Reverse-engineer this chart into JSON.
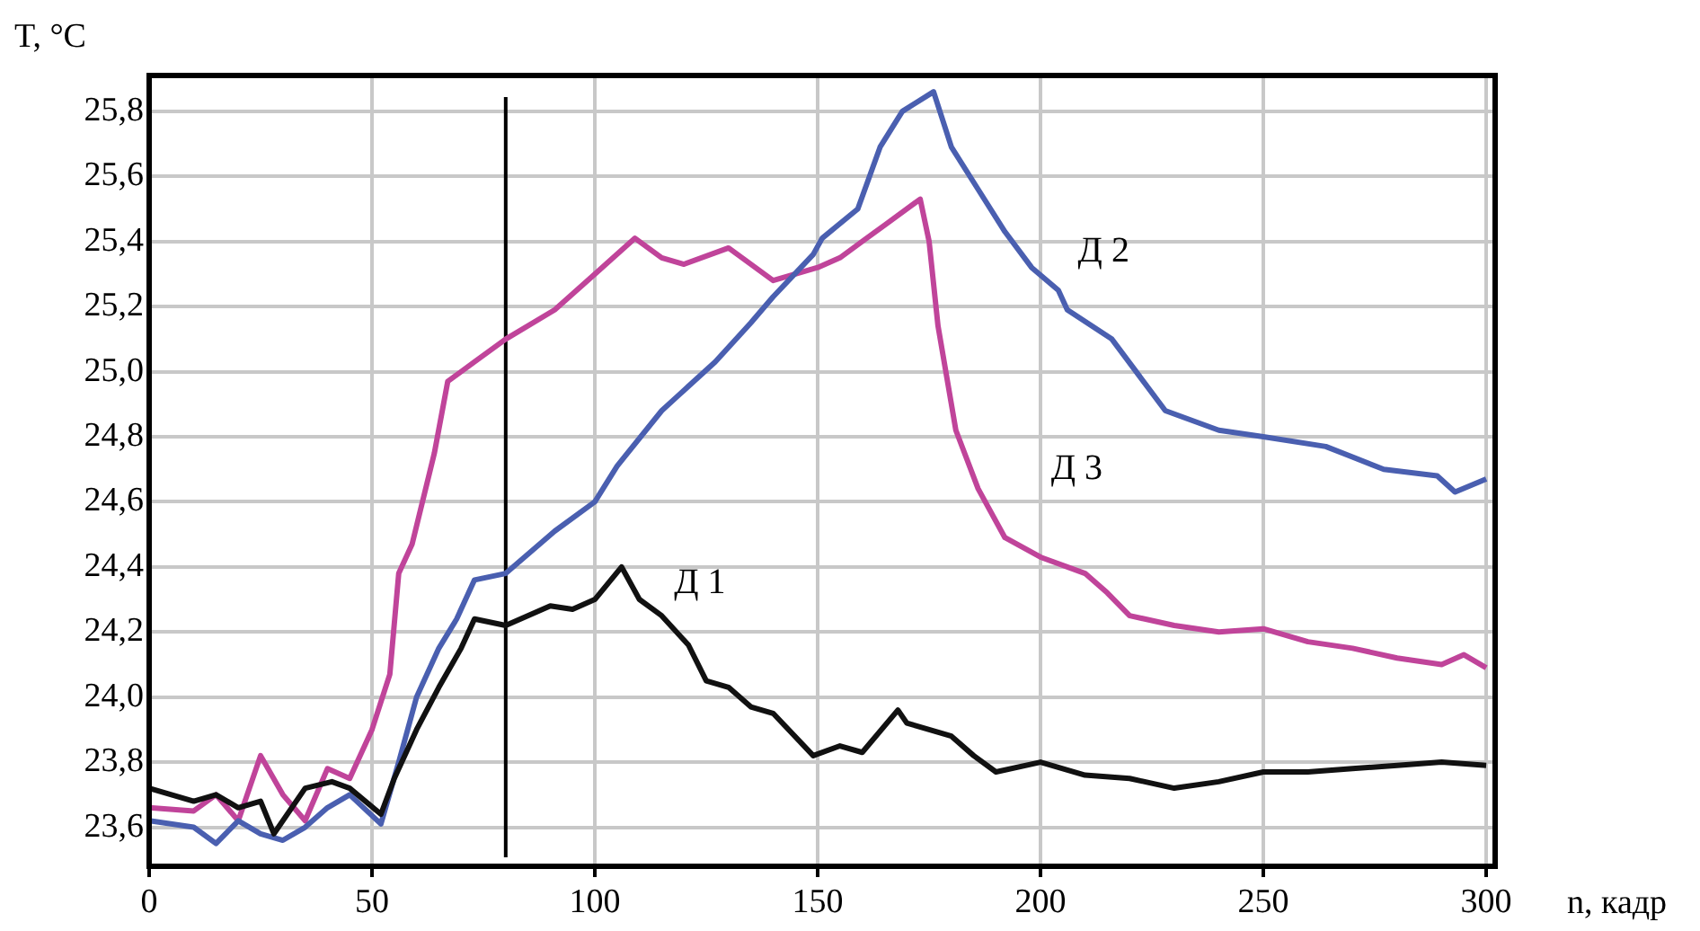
{
  "chart_data": {
    "type": "line",
    "xlabel": "n, кадр",
    "ylabel": "T, °C",
    "xlim": [
      0,
      302
    ],
    "ylim": [
      23.48,
      25.91
    ],
    "xticks": [
      0,
      50,
      100,
      150,
      200,
      250,
      300
    ],
    "yticks": [
      {
        "value": 23.6,
        "label": "23,6"
      },
      {
        "value": 23.8,
        "label": "23,8"
      },
      {
        "value": 24.0,
        "label": "24,0"
      },
      {
        "value": 24.2,
        "label": "24,2"
      },
      {
        "value": 24.4,
        "label": "24,4"
      },
      {
        "value": 24.6,
        "label": "24,6"
      },
      {
        "value": 24.8,
        "label": "24,8"
      },
      {
        "value": 25.0,
        "label": "25,0"
      },
      {
        "value": 25.2,
        "label": "25,2"
      },
      {
        "value": 25.4,
        "label": "25,4"
      },
      {
        "value": 25.6,
        "label": "25,6"
      },
      {
        "value": 25.8,
        "label": "25,8"
      }
    ],
    "grid": true,
    "legend": false,
    "marker": "none",
    "line_style": "solid",
    "ref_lines": [
      {
        "axis": "x",
        "value": 80,
        "color": "#000000"
      }
    ],
    "series": [
      {
        "name": "Д 1",
        "color": "#111111",
        "x": [
          0,
          5,
          10,
          15,
          20,
          25,
          28,
          35,
          41,
          45,
          52,
          55,
          60,
          65,
          70,
          73,
          80,
          90,
          95,
          100,
          106,
          110,
          115,
          121,
          125,
          130,
          135,
          140,
          149,
          155,
          160,
          168,
          170,
          175,
          180,
          185,
          190,
          200,
          210,
          220,
          230,
          240,
          250,
          260,
          270,
          280,
          290,
          300
        ],
        "values": [
          23.72,
          23.7,
          23.68,
          23.7,
          23.66,
          23.68,
          23.58,
          23.72,
          23.74,
          23.72,
          23.64,
          23.75,
          23.9,
          24.03,
          24.15,
          24.24,
          24.22,
          24.28,
          24.27,
          24.3,
          24.4,
          24.3,
          24.25,
          24.16,
          24.05,
          24.03,
          23.97,
          23.95,
          23.82,
          23.85,
          23.83,
          23.96,
          23.92,
          23.9,
          23.88,
          23.82,
          23.77,
          23.8,
          23.76,
          23.75,
          23.72,
          23.74,
          23.77,
          23.77,
          23.78,
          23.79,
          23.8,
          23.79
        ]
      },
      {
        "name": "Д 2",
        "color": "#4a5fb0",
        "x": [
          0,
          10,
          15,
          20,
          25,
          30,
          35,
          40,
          45,
          52,
          56,
          60,
          65,
          69,
          73,
          80,
          91,
          100,
          105,
          115,
          119,
          127,
          135,
          140,
          149,
          151,
          159,
          164,
          169,
          176,
          180,
          186,
          192,
          198,
          204,
          206,
          216,
          228,
          240,
          250,
          264,
          277,
          289,
          293,
          300
        ],
        "values": [
          23.62,
          23.6,
          23.55,
          23.62,
          23.58,
          23.56,
          23.6,
          23.66,
          23.7,
          23.61,
          23.8,
          24.0,
          24.15,
          24.24,
          24.36,
          24.38,
          24.51,
          24.6,
          24.71,
          24.88,
          24.93,
          25.03,
          25.15,
          25.23,
          25.36,
          25.41,
          25.5,
          25.69,
          25.8,
          25.86,
          25.69,
          25.56,
          25.43,
          25.32,
          25.25,
          25.19,
          25.1,
          24.88,
          24.82,
          24.8,
          24.77,
          24.7,
          24.68,
          24.63,
          24.67
        ]
      },
      {
        "name": "Д 3",
        "color": "#c0449a",
        "x": [
          0,
          10,
          15,
          20,
          25,
          30,
          35,
          40,
          45,
          50,
          54,
          56,
          59,
          64,
          67,
          73,
          80,
          91,
          100,
          109,
          115,
          120,
          130,
          140,
          150,
          155,
          160,
          165,
          173,
          175,
          177,
          181,
          186,
          192,
          200,
          210,
          215,
          220,
          230,
          240,
          250,
          260,
          270,
          280,
          290,
          295,
          300
        ],
        "values": [
          23.66,
          23.65,
          23.7,
          23.62,
          23.82,
          23.7,
          23.62,
          23.78,
          23.75,
          23.9,
          24.07,
          24.38,
          24.47,
          24.75,
          24.97,
          25.03,
          25.1,
          25.19,
          25.3,
          25.41,
          25.35,
          25.33,
          25.38,
          25.28,
          25.32,
          25.35,
          25.4,
          25.45,
          25.53,
          25.4,
          25.14,
          24.82,
          24.64,
          24.49,
          24.43,
          24.38,
          24.32,
          24.25,
          24.22,
          24.2,
          24.21,
          24.17,
          24.15,
          24.12,
          24.1,
          24.13,
          24.09
        ]
      }
    ]
  }
}
